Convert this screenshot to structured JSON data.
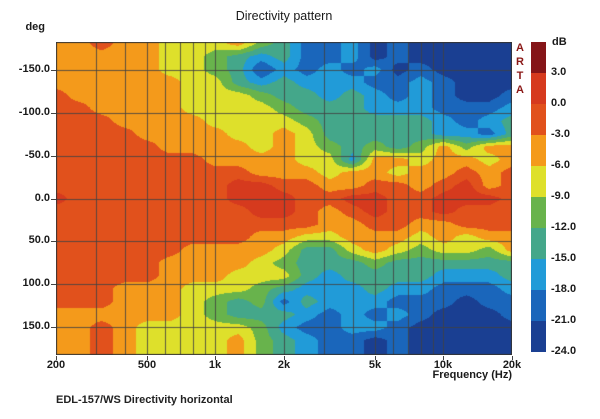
{
  "title": "Directivity pattern",
  "y_axis_unit_label": "deg",
  "x_axis_label": "Frequency (Hz)",
  "watermark": "ARTA",
  "footer_text": "EDL-157/WS Directivity horizontal",
  "chart_data": {
    "type": "heatmap",
    "title": "Directivity pattern",
    "xlabel": "Frequency (Hz)",
    "ylabel": "deg",
    "x_scale": "log",
    "x_range_hz": [
      200,
      20000
    ],
    "y_range_deg": [
      -182,
      182
    ],
    "grid": true,
    "x_tick_labels": [
      {
        "value": 200,
        "label": "200"
      },
      {
        "value": 500,
        "label": "500"
      },
      {
        "value": 1000,
        "label": "1k"
      },
      {
        "value": 2000,
        "label": "2k"
      },
      {
        "value": 5000,
        "label": "5k"
      },
      {
        "value": 10000,
        "label": "10k"
      },
      {
        "value": 20000,
        "label": "20k"
      }
    ],
    "y_tick_labels": [
      {
        "value": -150,
        "label": "-150.0"
      },
      {
        "value": -100,
        "label": "-100.0"
      },
      {
        "value": -50,
        "label": "-50.0"
      },
      {
        "value": 0,
        "label": "0.0"
      },
      {
        "value": 50,
        "label": "50.0"
      },
      {
        "value": 100,
        "label": "100.0"
      },
      {
        "value": 150,
        "label": "150.0"
      }
    ],
    "x_gridlines_hz": [
      300,
      400,
      500,
      600,
      700,
      800,
      900,
      1000,
      2000,
      3000,
      4000,
      5000,
      6000,
      7000,
      8000,
      9000,
      10000
    ],
    "y_gridlines_deg": [
      -150,
      -100,
      -50,
      0,
      50,
      100,
      150
    ],
    "frequencies_hz": [
      200,
      250,
      315,
      400,
      500,
      630,
      800,
      1000,
      1250,
      1600,
      2000,
      2500,
      3150,
      4000,
      5000,
      6300,
      8000,
      10000,
      12500,
      16000,
      20000
    ],
    "angles_deg": [
      -180,
      -165,
      -150,
      -135,
      -120,
      -105,
      -90,
      -75,
      -60,
      -45,
      -30,
      -15,
      0,
      15,
      30,
      45,
      60,
      75,
      90,
      105,
      120,
      135,
      150,
      165,
      180
    ],
    "values_db": [
      [
        -4.5,
        -4.5,
        -1.5,
        -4.5,
        -4.5,
        -7.5,
        -7.5,
        -7.5,
        -4.5,
        -10.5,
        -13.5,
        -19.5,
        -19.5,
        -16.5,
        -22.5,
        -19.5,
        -22.5,
        -22.5,
        -22.5,
        -22.5,
        -22.5
      ],
      [
        -4.5,
        -4.5,
        -4.5,
        -4.5,
        -4.5,
        -7.5,
        -7.5,
        -10.5,
        -13.5,
        -16.5,
        -13.5,
        -19.5,
        -19.5,
        -16.5,
        -22.5,
        -19.5,
        -22.5,
        -22.5,
        -22.5,
        -22.5,
        -22.5
      ],
      [
        -4.5,
        -4.5,
        -4.5,
        -4.5,
        -4.5,
        -7.5,
        -7.5,
        -10.5,
        -13.5,
        -21.0,
        -16.5,
        -19.5,
        -16.5,
        -19.5,
        -16.5,
        -22.5,
        -19.5,
        -22.5,
        -22.5,
        -22.5,
        -22.5
      ],
      [
        -4.5,
        -4.5,
        -4.5,
        -4.5,
        -4.5,
        -4.5,
        -7.5,
        -7.5,
        -13.5,
        -16.5,
        -13.5,
        -16.5,
        -16.5,
        -16.5,
        -19.5,
        -19.5,
        -16.5,
        -19.5,
        -22.5,
        -22.5,
        -22.5
      ],
      [
        -1.5,
        -4.5,
        -4.5,
        -4.5,
        -4.5,
        -4.5,
        -7.5,
        -7.5,
        -7.5,
        -10.5,
        -13.5,
        -13.5,
        -16.5,
        -13.5,
        -16.5,
        -19.5,
        -16.5,
        -19.5,
        -22.5,
        -22.5,
        -19.5
      ],
      [
        -1.5,
        -1.5,
        -4.5,
        -4.5,
        -4.5,
        -4.5,
        -7.5,
        -7.5,
        -7.5,
        -7.5,
        -10.5,
        -13.5,
        -13.5,
        -13.5,
        -16.5,
        -16.5,
        -16.5,
        -19.5,
        -19.5,
        -19.5,
        -16.5
      ],
      [
        -1.5,
        -1.5,
        -1.5,
        -4.5,
        -4.5,
        -4.5,
        -4.5,
        -7.5,
        -7.5,
        -7.5,
        -7.5,
        -10.5,
        -13.5,
        -13.5,
        -13.5,
        -13.5,
        -13.5,
        -16.5,
        -19.5,
        -16.5,
        -13.5
      ],
      [
        -1.5,
        -1.5,
        -1.5,
        -1.5,
        -4.5,
        -4.5,
        -4.5,
        -4.5,
        -7.5,
        -7.5,
        -4.5,
        -7.5,
        -13.5,
        -13.5,
        -13.5,
        -13.5,
        -13.5,
        -16.5,
        -16.5,
        -19.5,
        -13.5
      ],
      [
        -1.5,
        -1.5,
        -1.5,
        -1.5,
        -1.5,
        -4.5,
        -4.5,
        -4.5,
        -4.5,
        -7.5,
        -4.5,
        -7.5,
        -10.5,
        -13.5,
        -10.5,
        -13.5,
        -10.5,
        -4.5,
        -10.5,
        -4.5,
        -4.5
      ],
      [
        -1.5,
        -1.5,
        -1.5,
        -1.5,
        -1.5,
        -1.5,
        -1.5,
        -4.5,
        -4.5,
        -4.5,
        -4.5,
        -7.5,
        -7.5,
        -16.5,
        -4.5,
        -4.5,
        -7.5,
        -4.5,
        -4.5,
        -7.5,
        -4.5
      ],
      [
        -1.5,
        -1.5,
        -1.5,
        -1.5,
        -1.5,
        -1.5,
        -1.5,
        -1.5,
        -1.5,
        -4.5,
        -4.5,
        -4.5,
        -7.5,
        -4.5,
        -4.5,
        -7.5,
        -4.5,
        -4.5,
        -1.5,
        -4.5,
        -1.5
      ],
      [
        -1.5,
        -1.5,
        -1.5,
        -1.5,
        -1.5,
        -1.5,
        -1.5,
        -1.5,
        1.5,
        1.5,
        -1.5,
        -1.5,
        -4.5,
        -4.5,
        -1.5,
        -1.5,
        -4.5,
        -1.5,
        1.5,
        -4.5,
        -1.5
      ],
      [
        1.5,
        -1.5,
        -1.5,
        -1.5,
        -1.5,
        -1.5,
        -1.5,
        -1.5,
        1.5,
        1.5,
        1.5,
        -1.5,
        -1.5,
        1.5,
        1.5,
        -1.5,
        -1.5,
        1.5,
        1.5,
        1.5,
        -1.5
      ],
      [
        -1.5,
        -1.5,
        -1.5,
        -1.5,
        -1.5,
        -1.5,
        -1.5,
        -1.5,
        -1.5,
        1.5,
        1.5,
        -1.5,
        -4.5,
        -1.5,
        1.5,
        -1.5,
        -1.5,
        1.5,
        -1.5,
        -1.5,
        -1.5
      ],
      [
        -1.5,
        -1.5,
        -1.5,
        -1.5,
        -1.5,
        -1.5,
        -1.5,
        -1.5,
        -1.5,
        -1.5,
        -1.5,
        -1.5,
        -4.5,
        -4.5,
        -1.5,
        -1.5,
        -4.5,
        -4.5,
        -1.5,
        -1.5,
        -1.5
      ],
      [
        -1.5,
        -1.5,
        -1.5,
        -1.5,
        -1.5,
        -1.5,
        -1.5,
        -1.5,
        -1.5,
        -4.5,
        -4.5,
        -7.5,
        -7.5,
        -4.5,
        -4.5,
        -4.5,
        -7.5,
        -4.5,
        -7.5,
        -4.5,
        -4.5
      ],
      [
        -1.5,
        -1.5,
        -1.5,
        -1.5,
        -1.5,
        -1.5,
        -4.5,
        -4.5,
        -4.5,
        -4.5,
        -7.5,
        -13.5,
        -13.5,
        -7.5,
        -4.5,
        -7.5,
        -10.5,
        -7.5,
        -7.5,
        -10.5,
        -4.5
      ],
      [
        -1.5,
        -1.5,
        -1.5,
        -1.5,
        -1.5,
        -4.5,
        -4.5,
        -4.5,
        -4.5,
        -7.5,
        -10.5,
        -13.5,
        -13.5,
        -13.5,
        -10.5,
        -13.5,
        -13.5,
        -13.5,
        -13.5,
        -13.5,
        -13.5
      ],
      [
        -1.5,
        -1.5,
        -1.5,
        -1.5,
        -1.5,
        -4.5,
        -4.5,
        -4.5,
        -7.5,
        -7.5,
        -7.5,
        -13.5,
        -16.5,
        -13.5,
        -13.5,
        -13.5,
        -13.5,
        -16.5,
        -16.5,
        -16.5,
        -13.5
      ],
      [
        -1.5,
        -1.5,
        -1.5,
        -4.5,
        -4.5,
        -4.5,
        -7.5,
        -7.5,
        -7.5,
        -10.5,
        -13.5,
        -16.5,
        -16.5,
        -16.5,
        -13.5,
        -16.5,
        -16.5,
        -19.5,
        -19.5,
        -19.5,
        -16.5
      ],
      [
        -1.5,
        -1.5,
        -1.5,
        -4.5,
        -4.5,
        -4.5,
        -7.5,
        -10.5,
        -13.5,
        -10.5,
        -19.5,
        -13.5,
        -16.5,
        -16.5,
        -16.5,
        -19.5,
        -19.5,
        -19.5,
        -22.5,
        -19.5,
        -19.5
      ],
      [
        -4.5,
        -4.5,
        -4.5,
        -4.5,
        -4.5,
        -4.5,
        -7.5,
        -10.5,
        -13.5,
        -13.5,
        -13.5,
        -16.5,
        -19.5,
        -16.5,
        -19.5,
        -16.5,
        -19.5,
        -22.5,
        -22.5,
        -22.5,
        -19.5
      ],
      [
        -4.5,
        -4.5,
        -1.5,
        -4.5,
        -7.5,
        -7.5,
        -7.5,
        -7.5,
        -7.5,
        -10.5,
        -16.5,
        -19.5,
        -19.5,
        -16.5,
        -16.5,
        -19.5,
        -22.5,
        -22.5,
        -22.5,
        -22.5,
        -22.5
      ],
      [
        -4.5,
        -4.5,
        -1.5,
        -4.5,
        -7.5,
        -7.5,
        -7.5,
        -7.5,
        -4.5,
        -10.5,
        -13.5,
        -16.5,
        -19.5,
        -19.5,
        -22.5,
        -19.5,
        -22.5,
        -22.5,
        -22.5,
        -22.5,
        -22.5
      ],
      [
        -4.5,
        -4.5,
        -1.5,
        -4.5,
        -7.5,
        -7.5,
        -7.5,
        -7.5,
        -4.5,
        -10.5,
        -13.5,
        -16.5,
        -19.5,
        -19.5,
        -22.5,
        -19.5,
        -22.5,
        -22.5,
        -22.5,
        -22.5,
        -22.5
      ]
    ],
    "colorbar": {
      "label": "dB",
      "tick_labels": [
        "3.0",
        "0.0",
        "-3.0",
        "-6.0",
        "-9.0",
        "-12.0",
        "-15.0",
        "-18.0",
        "-21.0",
        "-24.0"
      ],
      "bands": [
        {
          "min_db": 3,
          "color": "#851518"
        },
        {
          "min_db": 0,
          "color": "#d63a1e"
        },
        {
          "min_db": -3,
          "color": "#e1511c"
        },
        {
          "min_db": -6,
          "color": "#f49a1b"
        },
        {
          "min_db": -9,
          "color": "#dee02b"
        },
        {
          "min_db": -12,
          "color": "#68b34c"
        },
        {
          "min_db": -15,
          "color": "#44a78a"
        },
        {
          "min_db": -18,
          "color": "#219bd8"
        },
        {
          "min_db": -21,
          "color": "#1a66bb"
        },
        {
          "min_db": -999,
          "color": "#1a3f92"
        }
      ]
    }
  }
}
